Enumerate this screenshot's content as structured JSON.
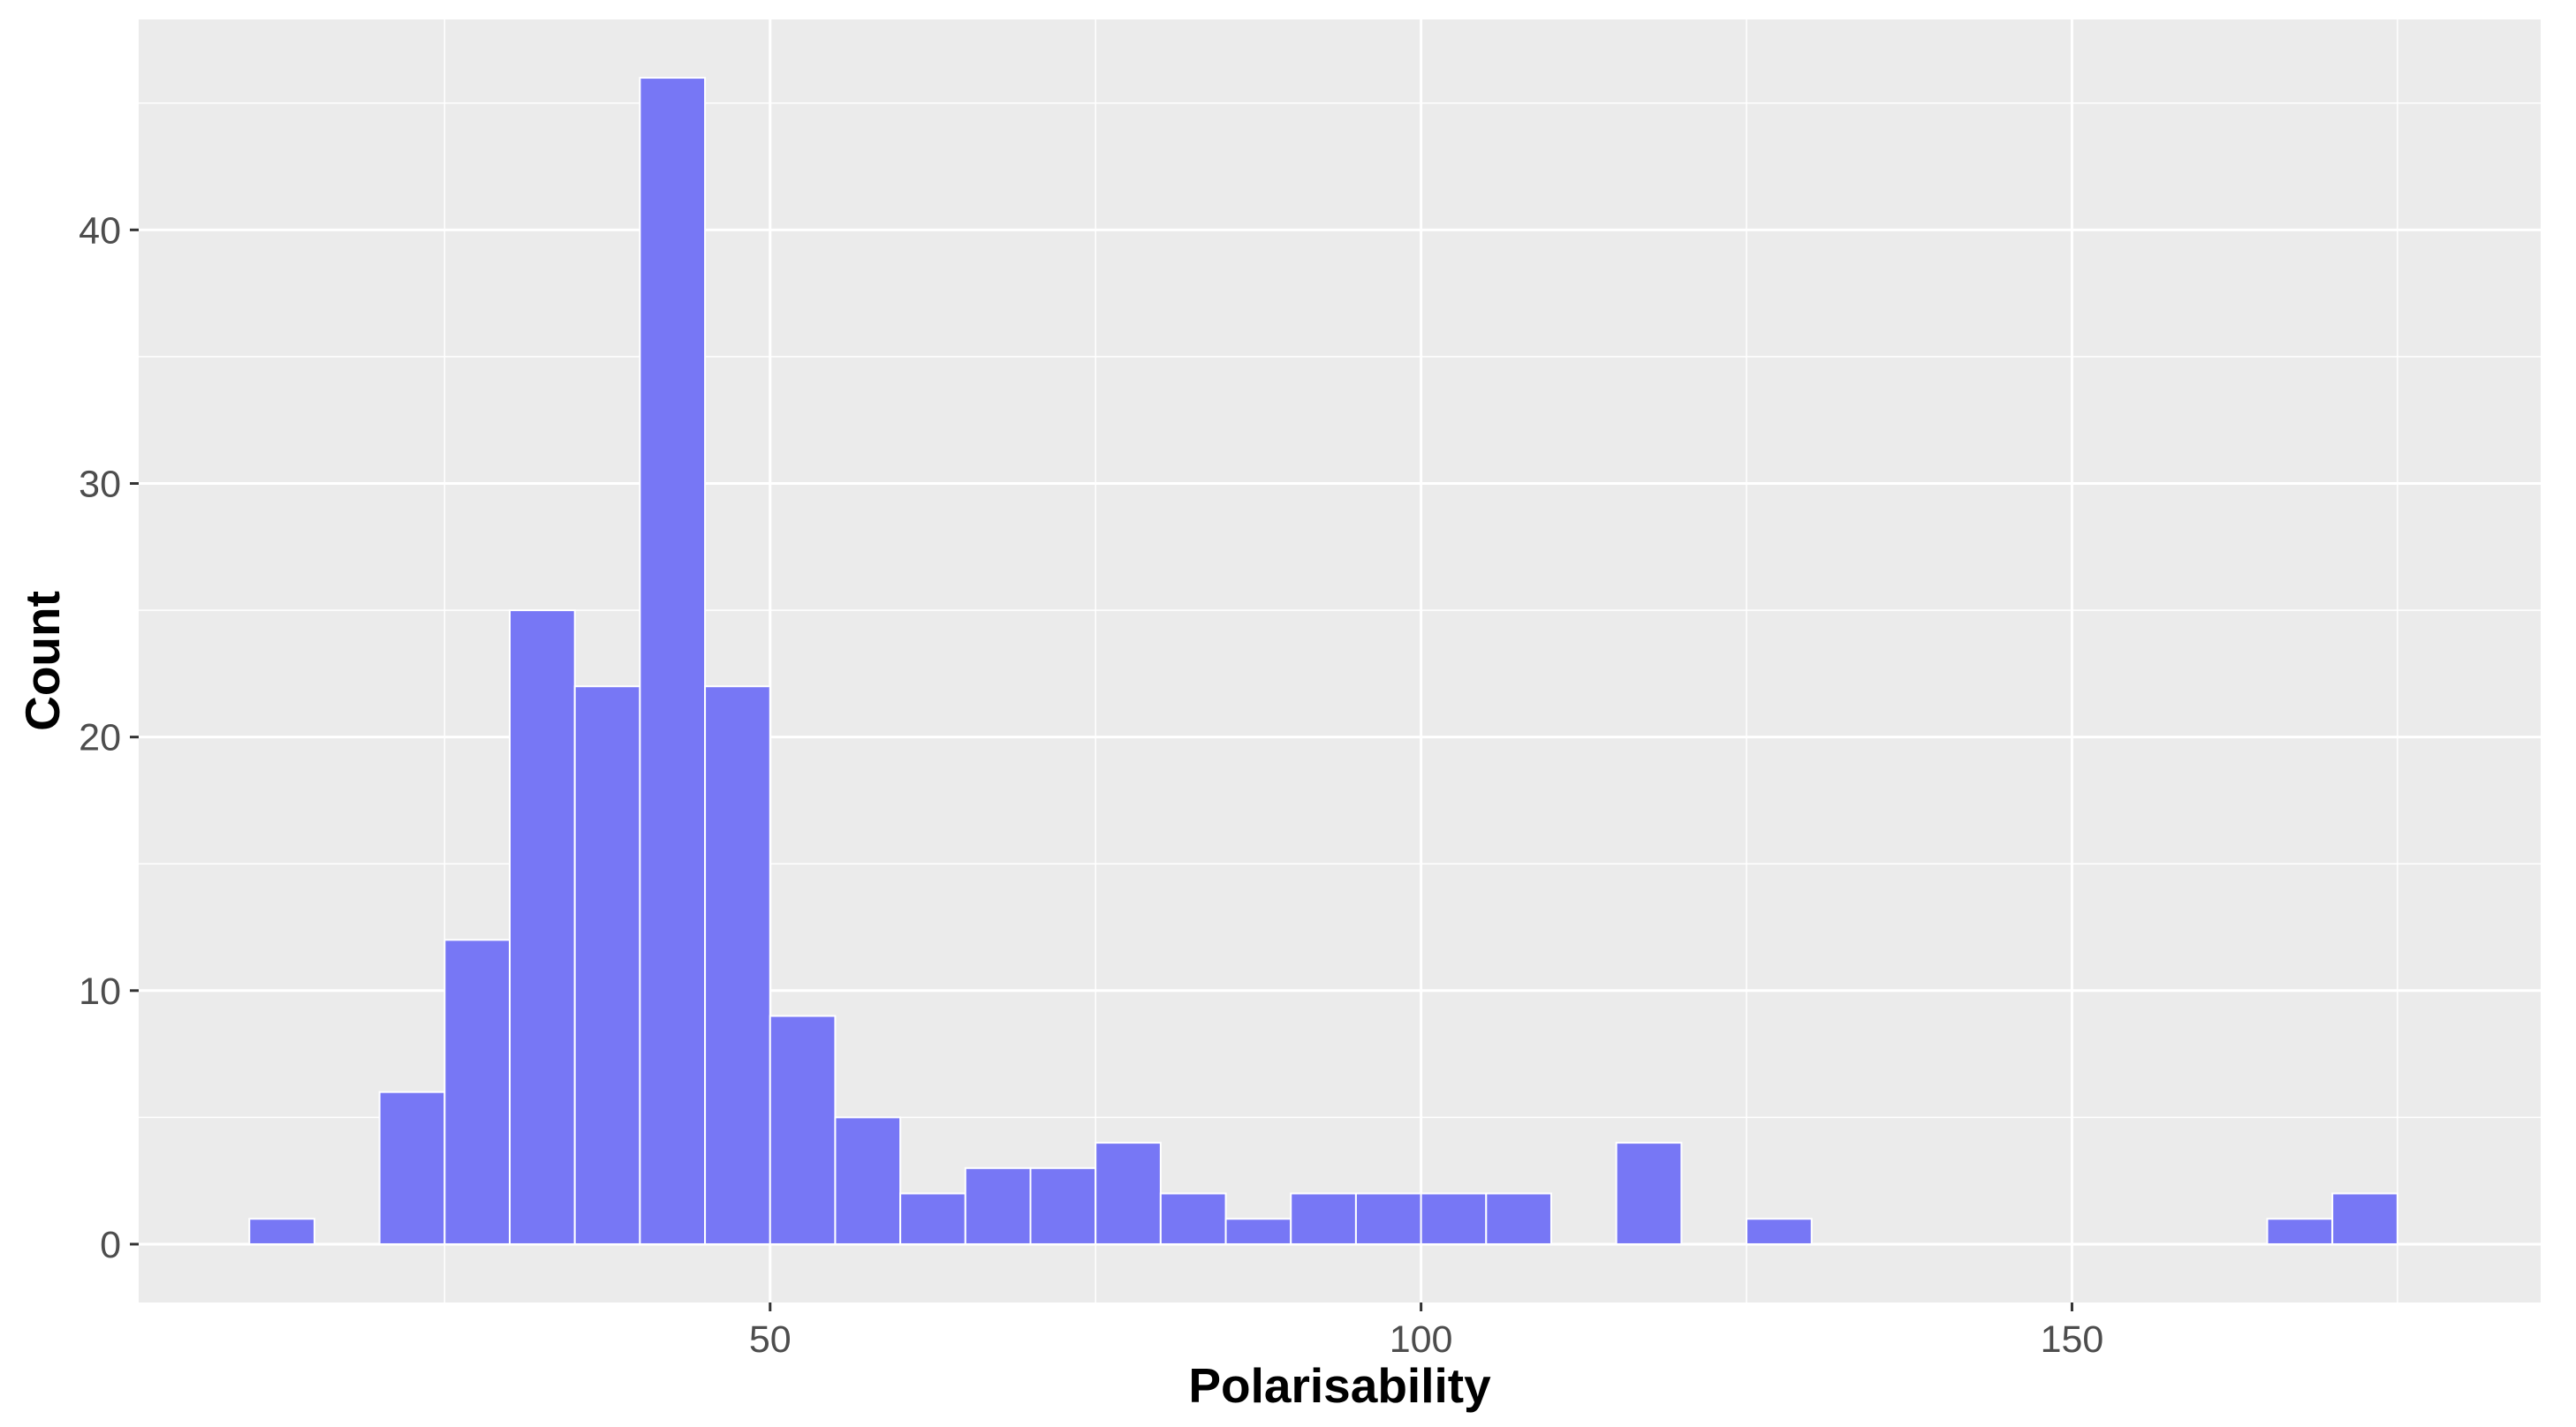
{
  "chart_data": {
    "type": "bar",
    "subtype": "histogram",
    "xlabel": "Polarisability",
    "ylabel": "Count",
    "bin_width": 5,
    "bins": [
      {
        "x0": 10,
        "x1": 15,
        "count": 1
      },
      {
        "x0": 20,
        "x1": 25,
        "count": 6
      },
      {
        "x0": 25,
        "x1": 30,
        "count": 12
      },
      {
        "x0": 30,
        "x1": 35,
        "count": 25
      },
      {
        "x0": 35,
        "x1": 40,
        "count": 22
      },
      {
        "x0": 40,
        "x1": 45,
        "count": 46
      },
      {
        "x0": 45,
        "x1": 50,
        "count": 22
      },
      {
        "x0": 50,
        "x1": 55,
        "count": 9
      },
      {
        "x0": 55,
        "x1": 60,
        "count": 5
      },
      {
        "x0": 60,
        "x1": 65,
        "count": 2
      },
      {
        "x0": 65,
        "x1": 70,
        "count": 3
      },
      {
        "x0": 70,
        "x1": 75,
        "count": 3
      },
      {
        "x0": 75,
        "x1": 80,
        "count": 4
      },
      {
        "x0": 80,
        "x1": 85,
        "count": 2
      },
      {
        "x0": 85,
        "x1": 90,
        "count": 1
      },
      {
        "x0": 90,
        "x1": 95,
        "count": 2
      },
      {
        "x0": 95,
        "x1": 100,
        "count": 2
      },
      {
        "x0": 100,
        "x1": 105,
        "count": 2
      },
      {
        "x0": 105,
        "x1": 110,
        "count": 2
      },
      {
        "x0": 115,
        "x1": 120,
        "count": 4
      },
      {
        "x0": 125,
        "x1": 130,
        "count": 1
      },
      {
        "x0": 165,
        "x1": 170,
        "count": 1
      },
      {
        "x0": 170,
        "x1": 175,
        "count": 2
      }
    ],
    "xlim": [
      1.5,
      186
    ],
    "ylim": [
      -2.3,
      48.3
    ],
    "x_ticks": [
      50,
      100,
      150
    ],
    "x_minor_ticks": [
      25,
      75,
      125,
      175
    ],
    "x_tick_labels": [
      "50",
      "100",
      "150"
    ],
    "y_ticks": [
      0,
      10,
      20,
      30,
      40
    ],
    "y_minor_ticks": [
      5,
      15,
      25,
      35,
      45
    ],
    "y_tick_labels": [
      "0",
      "10",
      "20",
      "30",
      "40"
    ],
    "grid": true,
    "legend": "none",
    "colors": {
      "bar_fill": "#7777f5",
      "bar_outline": "#ffffff",
      "panel_background": "#ebebeb",
      "grid_line": "#ffffff"
    }
  }
}
